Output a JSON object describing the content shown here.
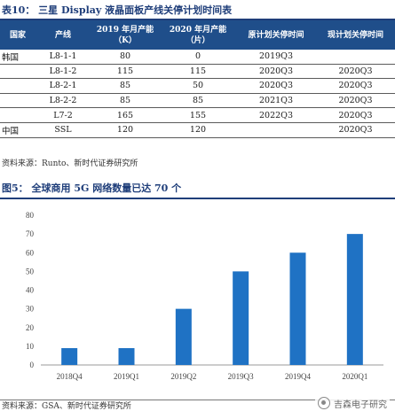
{
  "table": {
    "title": "表10：  三星 Display 液晶面板产线关停计划时间表",
    "headers": [
      "国家",
      "产线",
      "2019 年月产能（K）",
      "2020 年月产能（片）",
      "原计划关停时间",
      "现计划关停时间"
    ],
    "rows": [
      [
        "韩国",
        "L8-1-1",
        "80",
        "0",
        "2019Q3",
        ""
      ],
      [
        "",
        "L8-1-2",
        "115",
        "115",
        "2020Q3",
        "2020Q3"
      ],
      [
        "",
        "L8-2-1",
        "85",
        "50",
        "2020Q3",
        "2020Q3"
      ],
      [
        "",
        "L8-2-2",
        "85",
        "85",
        "2021Q3",
        "2020Q3"
      ],
      [
        "",
        "L7-2",
        "165",
        "155",
        "2022Q3",
        "2020Q3"
      ],
      [
        "中国",
        "SSL",
        "120",
        "120",
        "",
        "2020Q3"
      ]
    ],
    "source": "资料来源：Runto、新时代证券研究所"
  },
  "figure": {
    "title": "图5：  全球商用 5G 网络数量已达 70 个",
    "source": "资料来源：GSA、新时代证券研究所"
  },
  "chart_data": {
    "type": "bar",
    "categories": [
      "2018Q4",
      "2019Q1",
      "2019Q2",
      "2019Q3",
      "2019Q4",
      "2020Q1"
    ],
    "values": [
      9,
      9,
      30,
      50,
      60,
      70
    ],
    "ylim": [
      0,
      80
    ],
    "yticks": [
      0,
      10,
      20,
      30,
      40,
      50,
      60,
      70,
      80
    ],
    "grid": false,
    "bar_color": "#1f72c4"
  },
  "watermark": {
    "text": "吉森电子研究"
  }
}
